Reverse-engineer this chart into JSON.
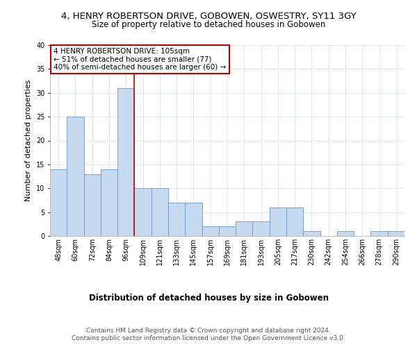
{
  "title_line1": "4, HENRY ROBERTSON DRIVE, GOBOWEN, OSWESTRY, SY11 3GY",
  "title_line2": "Size of property relative to detached houses in Gobowen",
  "xlabel": "Distribution of detached houses by size in Gobowen",
  "ylabel": "Number of detached properties",
  "categories": [
    "48sqm",
    "60sqm",
    "72sqm",
    "84sqm",
    "96sqm",
    "109sqm",
    "121sqm",
    "133sqm",
    "145sqm",
    "157sqm",
    "169sqm",
    "181sqm",
    "193sqm",
    "205sqm",
    "217sqm",
    "230sqm",
    "242sqm",
    "254sqm",
    "266sqm",
    "278sqm",
    "290sqm"
  ],
  "values": [
    14,
    25,
    13,
    14,
    31,
    10,
    10,
    7,
    7,
    2,
    2,
    3,
    3,
    6,
    6,
    1,
    0,
    1,
    0,
    1,
    1
  ],
  "bar_color": "#c5d9f0",
  "bar_edge_color": "#6699cc",
  "highlight_line_color": "#c00000",
  "annotation_box_text": "4 HENRY ROBERTSON DRIVE: 105sqm\n← 51% of detached houses are smaller (77)\n40% of semi-detached houses are larger (60) →",
  "annotation_box_color": "#ffffff",
  "annotation_box_edge_color": "#c00000",
  "ylim": [
    0,
    40
  ],
  "footer_line1": "Contains HM Land Registry data © Crown copyright and database right 2024.",
  "footer_line2": "Contains public sector information licensed under the Open Government Licence v3.0.",
  "grid_color": "#dce6f1",
  "background_color": "#ffffff",
  "title1_fontsize": 9.5,
  "title2_fontsize": 8.5,
  "annotation_fontsize": 7.5,
  "ylabel_fontsize": 8,
  "xlabel_fontsize": 8.5,
  "tick_fontsize": 7,
  "footer_fontsize": 6.5
}
